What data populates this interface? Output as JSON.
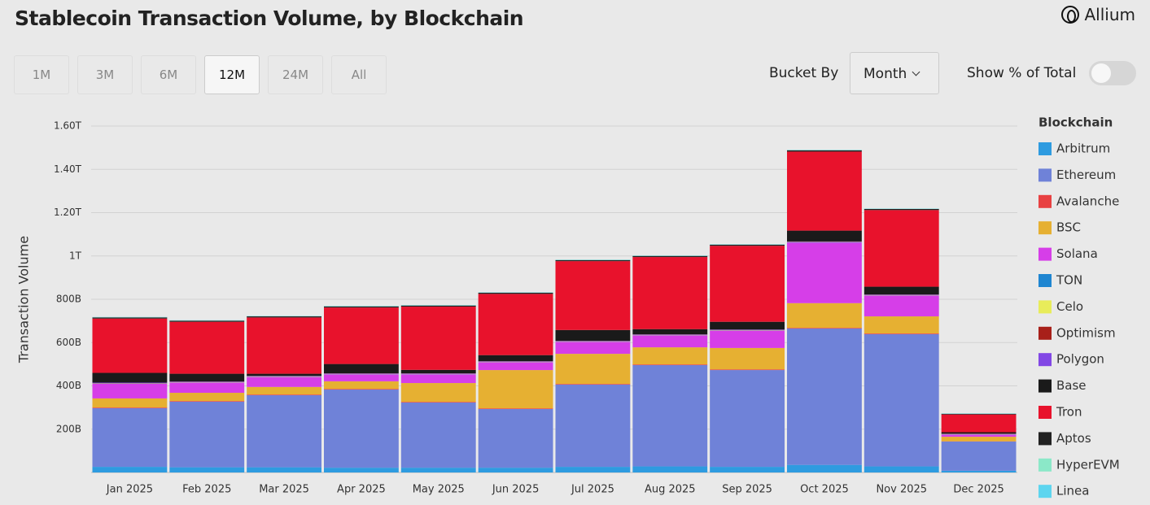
{
  "header": {
    "title": "Stablecoin Transaction Volume, by Blockchain",
    "brand": "Allium"
  },
  "controls": {
    "ranges": [
      "1M",
      "3M",
      "6M",
      "12M",
      "24M",
      "All"
    ],
    "active_range": 3,
    "bucket_label": "Bucket By",
    "bucket_value": "Month",
    "percent_label": "Show % of Total"
  },
  "chart_data": {
    "type": "stacked_bar",
    "y_label": "Transaction Volume",
    "legend_title": "Blockchain",
    "legend": "right",
    "grid": true,
    "ylim": [
      0,
      1600
    ],
    "yticks": [
      {
        "value": 200,
        "label": "200B"
      },
      {
        "value": 400,
        "label": "400B"
      },
      {
        "value": 600,
        "label": "600B"
      },
      {
        "value": 800,
        "label": "800B"
      },
      {
        "value": 1000,
        "label": "1T"
      },
      {
        "value": 1200,
        "label": "1.20T"
      },
      {
        "value": 1400,
        "label": "1.40T"
      },
      {
        "value": 1600,
        "label": "1.60T"
      }
    ],
    "categories": [
      "Jan 2025",
      "Feb 2025",
      "Mar 2025",
      "Apr 2025",
      "May 2025",
      "Jun 2025",
      "Jul 2025",
      "Aug 2025",
      "Sep 2025",
      "Oct 2025",
      "Nov 2025",
      "Dec 2025"
    ],
    "series": [
      {
        "name": "Arbitrum",
        "color": "#2e9be0",
        "values": [
          26,
          24,
          24,
          22,
          22,
          22,
          26,
          28,
          26,
          35,
          28,
          8
        ]
      },
      {
        "name": "Ethereum",
        "color": "#6f82d8",
        "values": [
          271,
          303,
          333,
          361,
          301,
          271,
          380,
          468,
          447,
          630,
          611,
          135
        ]
      },
      {
        "name": "Avalanche",
        "color": "#e84142",
        "values": [
          3,
          3,
          3,
          3,
          3,
          3,
          3,
          3,
          3,
          3,
          3,
          1
        ]
      },
      {
        "name": "BSC",
        "color": "#e6b032",
        "values": [
          42,
          38,
          35,
          35,
          87,
          177,
          139,
          79,
          99,
          114,
          79,
          21
        ]
      },
      {
        "name": "Solana",
        "color": "#d63ee8",
        "values": [
          68,
          47,
          46,
          32,
          40,
          36,
          55,
          55,
          80,
          280,
          96,
          10
        ]
      },
      {
        "name": "TON",
        "color": "#1f86d1",
        "values": [
          1,
          1,
          1,
          1,
          1,
          1,
          1,
          1,
          1,
          1,
          1,
          1
        ]
      },
      {
        "name": "Celo",
        "color": "#e8ec5a",
        "values": [
          1,
          1,
          1,
          1,
          1,
          1,
          1,
          1,
          1,
          1,
          1,
          1
        ]
      },
      {
        "name": "Optimism",
        "color": "#a8201a",
        "values": [
          1,
          1,
          1,
          1,
          1,
          1,
          1,
          1,
          1,
          1,
          1,
          1
        ]
      },
      {
        "name": "Polygon",
        "color": "#8247e5",
        "values": [
          2,
          2,
          2,
          2,
          2,
          2,
          2,
          2,
          2,
          2,
          2,
          1
        ]
      },
      {
        "name": "Base",
        "color": "#1a1a1a",
        "values": [
          45,
          36,
          10,
          43,
          16,
          28,
          50,
          24,
          36,
          50,
          36,
          7
        ]
      },
      {
        "name": "Tron",
        "color": "#e8122c",
        "values": [
          251,
          240,
          260,
          261,
          292,
          283,
          318,
          333,
          351,
          365,
          354,
          82
        ]
      },
      {
        "name": "Aptos",
        "color": "#222222",
        "values": [
          5,
          5,
          5,
          5,
          5,
          5,
          5,
          5,
          5,
          6,
          5,
          3
        ]
      },
      {
        "name": "HyperEVM",
        "color": "#8be8c8",
        "values": [
          1,
          1,
          1,
          1,
          1,
          1,
          1,
          1,
          1,
          1,
          1,
          1
        ]
      },
      {
        "name": "Linea",
        "color": "#5dd5ef",
        "values": [
          1,
          1,
          1,
          1,
          1,
          1,
          1,
          1,
          1,
          1,
          1,
          1
        ]
      }
    ]
  }
}
